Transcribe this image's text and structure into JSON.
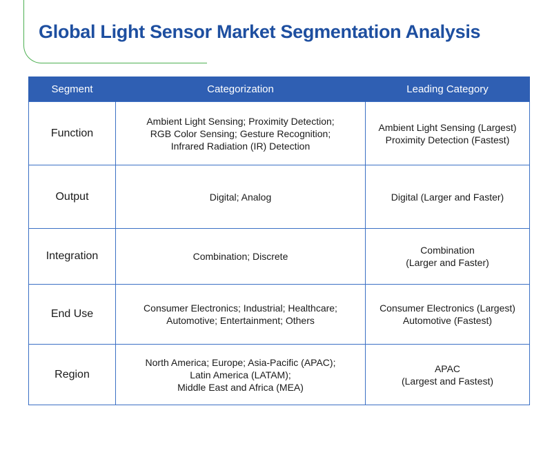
{
  "title": "Global Light Sensor Market Segmentation Analysis",
  "colors": {
    "title_blue": "#1e4fa0",
    "header_blue": "#2f5fb3",
    "border_blue": "#3a6fc4",
    "accent_green": "#4caf50"
  },
  "table": {
    "headers": {
      "segment": "Segment",
      "categorization": "Categorization",
      "leading": "Leading Category"
    },
    "rows": [
      {
        "segment": "Function",
        "categorization": [
          "Ambient Light Sensing; Proximity Detection;",
          "RGB Color Sensing; Gesture Recognition;",
          "Infrared Radiation (IR) Detection"
        ],
        "leading": [
          "Ambient Light Sensing (Largest)",
          "Proximity Detection (Fastest)"
        ]
      },
      {
        "segment": "Output",
        "categorization": [
          "Digital; Analog"
        ],
        "leading": [
          "Digital (Larger and Faster)"
        ]
      },
      {
        "segment": "Integration",
        "categorization": [
          "Combination; Discrete"
        ],
        "leading": [
          "Combination",
          "(Larger and Faster)"
        ]
      },
      {
        "segment": "End Use",
        "categorization": [
          "Consumer Electronics; Industrial; Healthcare;",
          "Automotive; Entertainment; Others"
        ],
        "leading": [
          "Consumer Electronics (Largest)",
          "Automotive (Fastest)"
        ]
      },
      {
        "segment": "Region",
        "categorization": [
          "North America; Europe; Asia-Pacific (APAC);",
          "Latin America (LATAM);",
          "Middle East and Africa (MEA)"
        ],
        "leading": [
          "APAC",
          "(Largest and Fastest)"
        ]
      }
    ]
  }
}
